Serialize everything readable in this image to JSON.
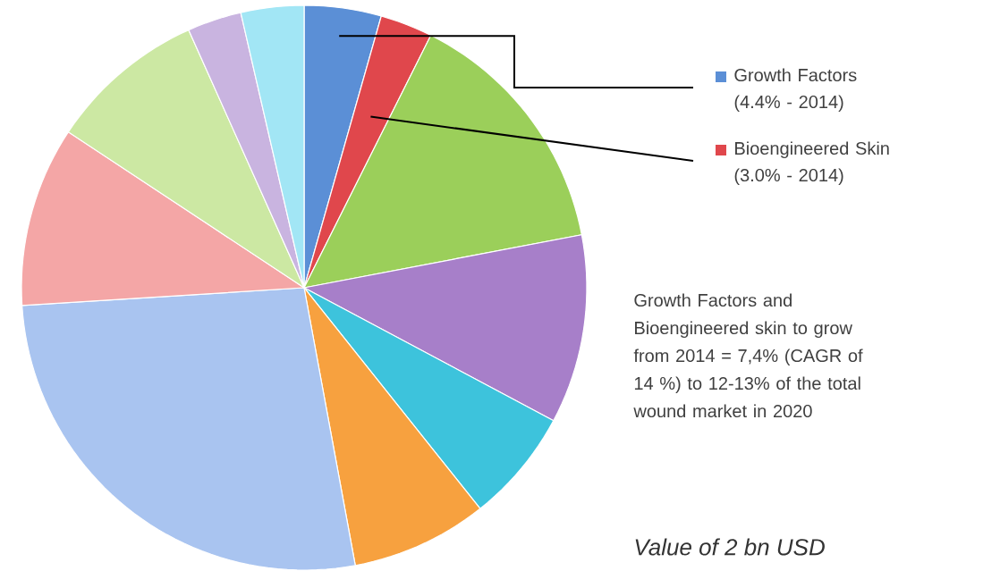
{
  "chart_data": {
    "type": "pie",
    "categories": [
      "Growth Factors (4.4% - 2014)",
      "Bioengineered Skin (3.0% - 2014)",
      null,
      null,
      null,
      null,
      null,
      null,
      null,
      null,
      null
    ],
    "values": [
      4.4,
      3.0,
      14.6,
      10.8,
      6.5,
      7.8,
      26.9,
      10.3,
      9.0,
      3.1,
      3.6
    ],
    "colors": [
      "#5b8fd6",
      "#e0474c",
      "#9bcf5a",
      "#a77fc9",
      "#3dc3dc",
      "#f7a13f",
      "#a9c4f0",
      "#f4a6a6",
      "#cce8a3",
      "#c9b4e0",
      "#a2e6f5"
    ],
    "legend": "right",
    "annotations": [
      "Growth Factors and Bioengineered skin to grow from 2014 = 7,4% (CAGR of 14 %) to 12-13% of the total wound market in 2020",
      "Value of 2 bn USD"
    ]
  }
}
